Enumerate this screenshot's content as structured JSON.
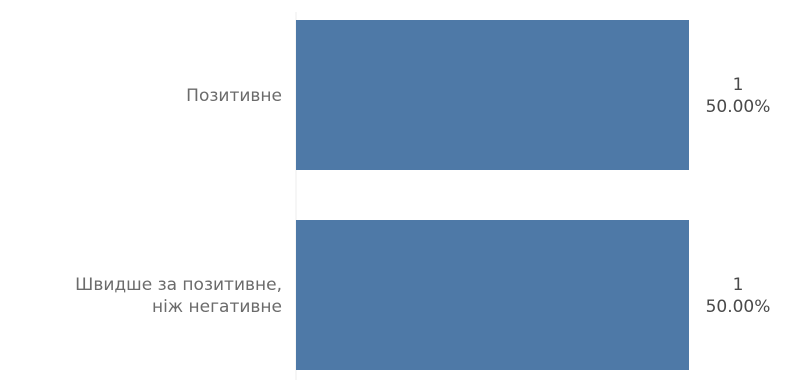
{
  "chart_data": {
    "type": "bar",
    "orientation": "horizontal",
    "categories": [
      [
        "Позитивне"
      ],
      [
        "Швидше за позитивне,",
        "ніж негативне"
      ]
    ],
    "values": [
      1,
      1
    ],
    "value_labels": [
      "1",
      "1"
    ],
    "percent_labels": [
      "50.00%",
      "50.00%"
    ],
    "xlim": [
      0,
      1
    ],
    "grid": false,
    "legend": "none",
    "bar_color": "#4e79a7"
  }
}
